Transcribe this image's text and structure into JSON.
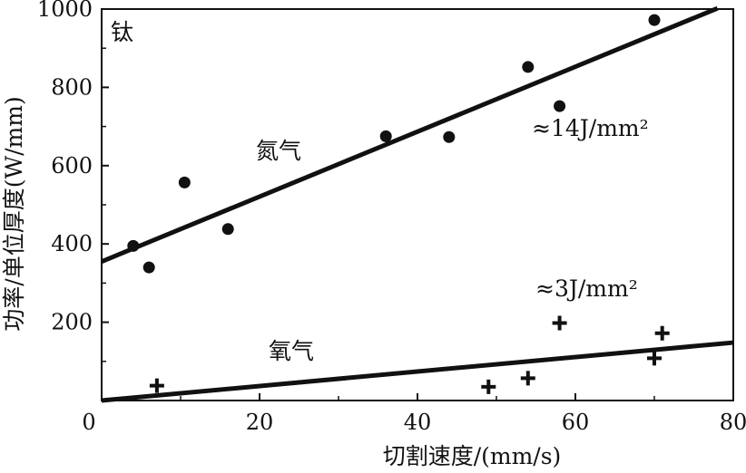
{
  "chart_data": {
    "type": "scatter",
    "xlabel": "切割速度/(mm/s)",
    "ylabel": "功率/单位厚度(W/mm)",
    "xlim": [
      0,
      80
    ],
    "ylim": [
      0,
      1000
    ],
    "x_ticks": [
      "0",
      "20",
      "40",
      "60",
      "80"
    ],
    "y_ticks": [
      {
        "v": 200,
        "t": "200"
      },
      {
        "v": 400,
        "t": "400"
      },
      {
        "v": 600,
        "t": "600"
      },
      {
        "v": 800,
        "t": "800"
      },
      {
        "v": 1000,
        "t": "1000"
      }
    ],
    "panel_label": "钛",
    "grid": false,
    "series": [
      {
        "name": "氮气",
        "marker": "circle",
        "points": [
          [
            4,
            395
          ],
          [
            6,
            340
          ],
          [
            10.5,
            557
          ],
          [
            16,
            438
          ],
          [
            36,
            675
          ],
          [
            44,
            673
          ],
          [
            54,
            852
          ],
          [
            58,
            752
          ],
          [
            70,
            972
          ]
        ],
        "fit": {
          "from": [
            0,
            355
          ],
          "to": [
            78,
            1002
          ]
        },
        "fit_label": "≈14J/mm²"
      },
      {
        "name": "氧气",
        "marker": "cross",
        "points": [
          [
            7,
            38
          ],
          [
            49,
            35
          ],
          [
            54,
            57
          ],
          [
            58,
            198
          ],
          [
            70,
            108
          ],
          [
            71,
            172
          ]
        ],
        "fit": {
          "from": [
            0,
            0
          ],
          "to": [
            80,
            148
          ]
        },
        "fit_label": "≈3J/mm²"
      }
    ]
  }
}
